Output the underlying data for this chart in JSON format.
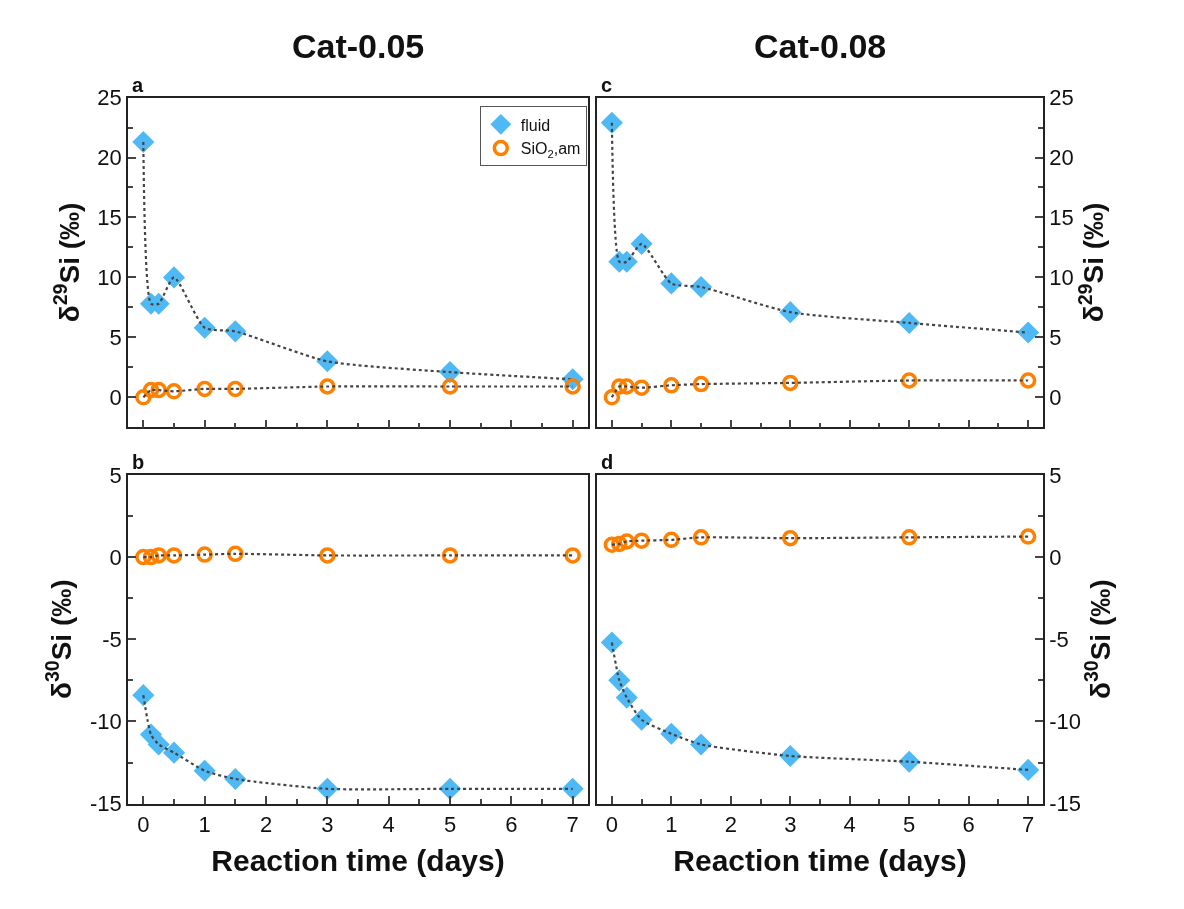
{
  "chart_data": [
    {
      "type": "line",
      "title": "Cat-0.05",
      "annotations": [
        "a"
      ],
      "ylabel": "δ$^{29}$Si (‰)",
      "x": [
        0,
        0.125,
        0.25,
        0.5,
        1,
        1.5,
        3,
        5,
        7
      ],
      "xlim": [
        -0.25,
        7.25
      ],
      "xticks": [
        0,
        1,
        2,
        3,
        4,
        5,
        6,
        7
      ],
      "ylim": [
        -2.5,
        25
      ],
      "yticks": [
        0,
        5,
        10,
        15,
        20,
        25
      ],
      "tick_labels": "y",
      "legend": "top right",
      "line_style": "dotted",
      "series": [
        {
          "name": "fluid",
          "color": "#4fb9f5",
          "marker": "diamond",
          "values": [
            21.3,
            7.8,
            7.8,
            10.0,
            5.8,
            5.5,
            3.0,
            2.1,
            1.5
          ]
        },
        {
          "name": "SiO$_{2}$,am",
          "color": "#ff8000",
          "marker": "circle",
          "values": [
            0,
            0.6,
            0.6,
            0.5,
            0.7,
            0.7,
            0.9,
            0.9,
            0.9
          ]
        }
      ]
    },
    {
      "type": "line",
      "title": "Cat-0.08",
      "annotations": [
        "c"
      ],
      "ylabel": "δ$^{29}$Si (‰)",
      "x": [
        0,
        0.125,
        0.25,
        0.5,
        1,
        1.5,
        3,
        5,
        7
      ],
      "xlim": [
        -0.25,
        7.25
      ],
      "xticks": [
        0,
        1,
        2,
        3,
        4,
        5,
        6,
        7
      ],
      "ylim": [
        -2.5,
        25
      ],
      "yticks": [
        0,
        5,
        10,
        15,
        20,
        25
      ],
      "tick_labels": "y",
      "line_style": "dotted",
      "series": [
        {
          "color": "#4fb9f5",
          "marker": "diamond",
          "values": [
            22.9,
            11.3,
            11.3,
            12.8,
            9.5,
            9.2,
            7.1,
            6.2,
            5.4
          ]
        },
        {
          "color": "#ff8000",
          "marker": "circle",
          "values": [
            0,
            0.9,
            0.9,
            0.8,
            1.0,
            1.1,
            1.2,
            1.4,
            1.4
          ]
        }
      ]
    },
    {
      "type": "line",
      "annotations": [
        "b"
      ],
      "xlabel": "Reaction time (days)",
      "ylabel": "δ$^{30}$Si (‰)",
      "x": [
        0,
        0.125,
        0.25,
        0.5,
        1,
        1.5,
        3,
        5,
        7
      ],
      "xlim": [
        -0.25,
        7.25
      ],
      "xticks": [
        0,
        1,
        2,
        3,
        4,
        5,
        6,
        7
      ],
      "ylim": [
        -15,
        5
      ],
      "yticks": [
        -15,
        -10,
        -5,
        0,
        5
      ],
      "line_style": "dotted",
      "series": [
        {
          "color": "#4fb9f5",
          "marker": "diamond",
          "values": [
            -8.4,
            -10.8,
            -11.4,
            -11.9,
            -13.0,
            -13.5,
            -14.1,
            -14.1,
            -14.1
          ]
        },
        {
          "color": "#ff8000",
          "marker": "circle",
          "values": [
            0,
            0,
            0.1,
            0.1,
            0.15,
            0.2,
            0.1,
            0.1,
            0.1
          ]
        }
      ]
    },
    {
      "type": "line",
      "annotations": [
        "d"
      ],
      "xlabel": "Reaction time (days)",
      "ylabel": "δ$^{30}$Si (‰)",
      "x": [
        0,
        0.125,
        0.25,
        0.5,
        1,
        1.5,
        3,
        5,
        7
      ],
      "xlim": [
        -0.25,
        7.25
      ],
      "xticks": [
        0,
        1,
        2,
        3,
        4,
        5,
        6,
        7
      ],
      "ylim": [
        -15,
        5
      ],
      "yticks": [
        -15,
        -10,
        -5,
        0,
        5
      ],
      "line_style": "dotted",
      "series": [
        {
          "color": "#4fb9f5",
          "marker": "diamond",
          "values": [
            -5.2,
            -7.5,
            -8.55,
            -9.9,
            -10.75,
            -11.4,
            -12.1,
            -12.45,
            -12.95
          ]
        },
        {
          "color": "#ff8000",
          "marker": "circle",
          "values": [
            0.75,
            0.8,
            0.95,
            1.0,
            1.05,
            1.2,
            1.15,
            1.2,
            1.25
          ]
        }
      ]
    }
  ]
}
